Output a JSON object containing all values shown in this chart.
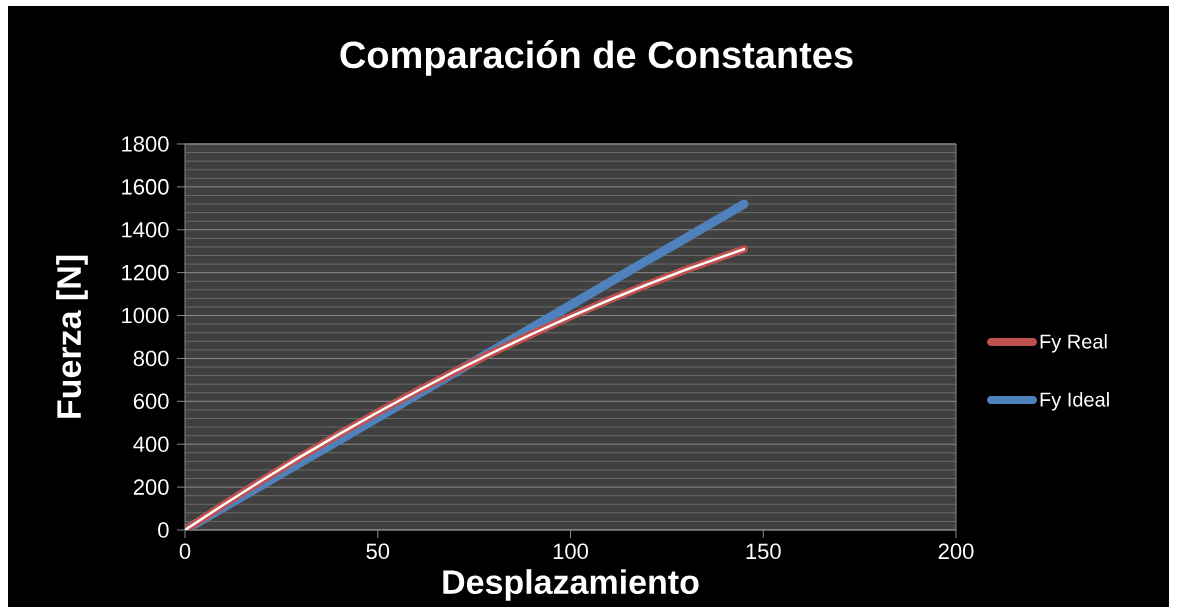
{
  "chart_data": {
    "type": "line",
    "title": "Comparación de Constantes",
    "xlabel": "Desplazamiento",
    "ylabel": "Fuerza [N]",
    "x": [
      0,
      10,
      20,
      30,
      40,
      50,
      60,
      70,
      80,
      90,
      100,
      110,
      120,
      130,
      140,
      145
    ],
    "series": [
      {
        "name": "Fy Real",
        "color": "#c0504d",
        "values": [
          0,
          118,
          232,
          342,
          447,
          549,
          646,
          740,
          829,
          914,
          995,
          1072,
          1145,
          1214,
          1278,
          1310
        ]
      },
      {
        "name": "Fy Ideal",
        "color": "#4f81bd",
        "values": [
          0,
          105,
          210,
          315,
          419,
          524,
          629,
          734,
          839,
          943,
          1048,
          1153,
          1258,
          1362,
          1467,
          1520
        ]
      }
    ],
    "xlim": [
      0,
      200
    ],
    "ylim": [
      0,
      1800
    ],
    "xticks": [
      0,
      50,
      100,
      150,
      200
    ],
    "yticks": [
      0,
      200,
      400,
      600,
      800,
      1000,
      1200,
      1400,
      1600,
      1800
    ],
    "grid": "y",
    "legend": "right",
    "marker": "none",
    "line_style": "solid"
  }
}
